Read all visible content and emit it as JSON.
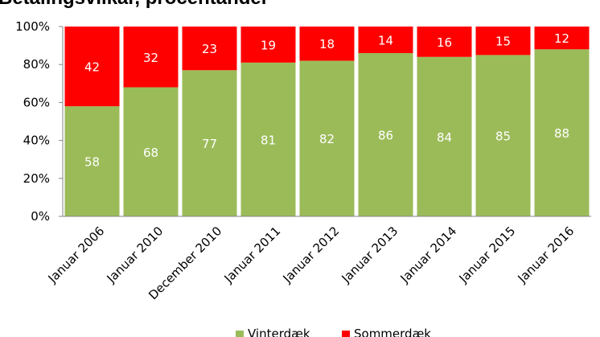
{
  "chart_data": {
    "type": "bar",
    "stacked": true,
    "normalized_percent": true,
    "title": "Betalingsvilkår, procentandel",
    "categories": [
      "Januar 2006",
      "Januar 2010",
      "December 2010",
      "Januar 2011",
      "Januar 2012",
      "Januar 2013",
      "Januar 2014",
      "Januar 2015",
      "Januar 2016"
    ],
    "series": [
      {
        "name": "Vinterdæk",
        "color": "#9BBB59",
        "values": [
          58,
          68,
          77,
          81,
          82,
          86,
          84,
          85,
          88
        ]
      },
      {
        "name": "Sommerdæk",
        "color": "#FF0000",
        "values": [
          42,
          32,
          23,
          19,
          18,
          14,
          16,
          15,
          12
        ]
      }
    ],
    "ylim": [
      0,
      100
    ],
    "yticks": [
      "0%",
      "20%",
      "40%",
      "60%",
      "80%",
      "100%"
    ],
    "xlabel": "",
    "ylabel": "",
    "grid": false,
    "legend": "bottom-center",
    "data_labels": true
  }
}
